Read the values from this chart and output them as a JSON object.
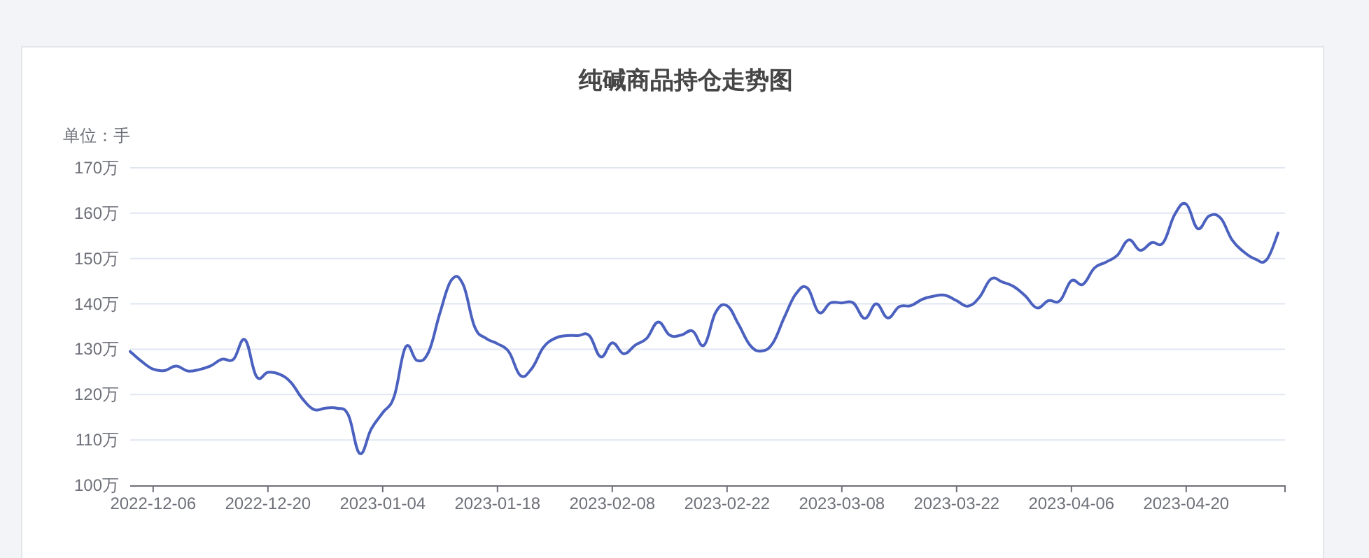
{
  "chart_data": {
    "type": "line",
    "title": "纯碱商品持仓走势图",
    "ylabel": "单位：手",
    "categories": [
      null,
      null,
      "2022-12-06",
      null,
      null,
      null,
      null,
      null,
      null,
      null,
      null,
      null,
      "2022-12-20",
      null,
      null,
      null,
      null,
      null,
      null,
      null,
      null,
      null,
      "2023-01-04",
      null,
      null,
      null,
      null,
      null,
      null,
      null,
      null,
      null,
      "2023-01-18",
      null,
      null,
      null,
      null,
      null,
      null,
      null,
      null,
      null,
      "2023-02-08",
      null,
      null,
      null,
      null,
      null,
      null,
      null,
      null,
      null,
      "2023-02-22",
      null,
      null,
      null,
      null,
      null,
      null,
      null,
      null,
      null,
      "2023-03-08",
      null,
      null,
      null,
      null,
      null,
      null,
      null,
      null,
      null,
      "2023-03-22",
      null,
      null,
      null,
      null,
      null,
      null,
      null,
      null,
      null,
      "2023-04-06",
      null,
      null,
      null,
      null,
      null,
      null,
      null,
      null,
      null,
      "2023-04-20",
      null,
      null,
      null,
      null,
      null,
      null,
      null,
      null
    ],
    "series": [
      {
        "color": "#4b61bf",
        "values": [
          129.5,
          127.3,
          125.6,
          125.3,
          126.3,
          125.2,
          125.5,
          126.3,
          127.8,
          127.8,
          132.1,
          124,
          124.9,
          124.5,
          122.7,
          119.1,
          116.7,
          117,
          117,
          115.5,
          107,
          112.4,
          116,
          119.6,
          130.5,
          127.5,
          129.4,
          138.1,
          145.3,
          144.3,
          135,
          132.4,
          131.2,
          129.4,
          124.2,
          125.8,
          130.4,
          132.4,
          133,
          133,
          133,
          128.3,
          131.4,
          129,
          130.9,
          132.4,
          136,
          133.1,
          133.1,
          134,
          130.9,
          138.1,
          139.6,
          135.5,
          130.9,
          129.6,
          131.4,
          137.1,
          142.2,
          143.5,
          138.1,
          140.2,
          140.2,
          140.2,
          136.8,
          140,
          136.9,
          139.4,
          139.6,
          141,
          141.7,
          141.9,
          140.7,
          139.5,
          141.5,
          145.5,
          144.8,
          143.8,
          141.7,
          139.1,
          140.7,
          140.7,
          145.1,
          144.3,
          147.9,
          149.2,
          150.7,
          154.1,
          151.8,
          153.5,
          153.5,
          159.7,
          162,
          156.6,
          159.4,
          158.9,
          154.1,
          151.5,
          149.9,
          149.7,
          155.6
        ]
      }
    ],
    "ylim": [
      100,
      170
    ],
    "yticks": [
      {
        "value": 100,
        "label": "100万"
      },
      {
        "value": 110,
        "label": "110万"
      },
      {
        "value": 120,
        "label": "120万"
      },
      {
        "value": 130,
        "label": "130万"
      },
      {
        "value": 140,
        "label": "140万"
      },
      {
        "value": 150,
        "label": "150万"
      },
      {
        "value": 160,
        "label": "160万"
      },
      {
        "value": 170,
        "label": "170万"
      }
    ],
    "grid": "y",
    "marker": "none",
    "line_style": "solid"
  }
}
